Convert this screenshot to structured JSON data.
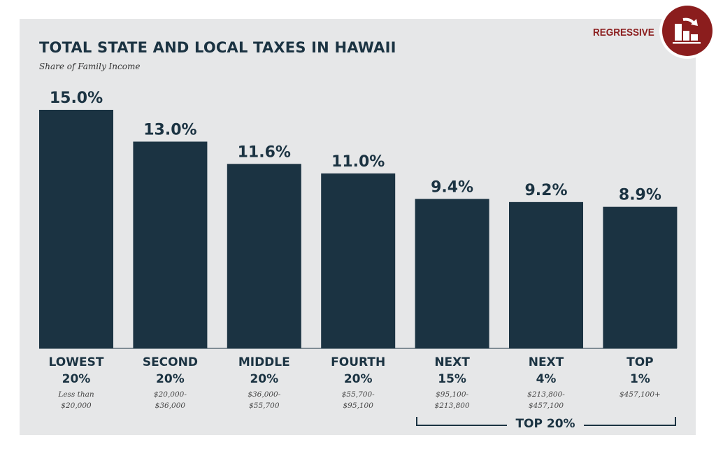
{
  "badge": {
    "label": "REGRESSIVE",
    "icon": "regressive-bar-chart-icon",
    "color": "#8b1d1d"
  },
  "chart_data": {
    "type": "bar",
    "title": "TOTAL STATE AND LOCAL TAXES IN HAWAII",
    "subtitle": "Share of Family Income",
    "categories": [
      {
        "name": "LOWEST",
        "pct": "20%",
        "range1": "Less than",
        "range2": "$20,000"
      },
      {
        "name": "SECOND",
        "pct": "20%",
        "range1": "$20,000-",
        "range2": "$36,000"
      },
      {
        "name": "MIDDLE",
        "pct": "20%",
        "range1": "$36,000-",
        "range2": "$55,700"
      },
      {
        "name": "FOURTH",
        "pct": "20%",
        "range1": "$55,700-",
        "range2": "$95,100"
      },
      {
        "name": "NEXT",
        "pct": "15%",
        "range1": "$95,100-",
        "range2": "$213,800"
      },
      {
        "name": "NEXT",
        "pct": "4%",
        "range1": "$213,800-",
        "range2": "$457,100"
      },
      {
        "name": "TOP",
        "pct": "1%",
        "range1": "$457,100+",
        "range2": ""
      }
    ],
    "values": [
      15.0,
      13.0,
      11.6,
      11.0,
      9.4,
      9.2,
      8.9
    ],
    "data_labels": [
      "15.0%",
      "13.0%",
      "11.6%",
      "11.0%",
      "9.4%",
      "9.2%",
      "8.9%"
    ],
    "group_label": "TOP 20%",
    "bar_color": "#1b3342",
    "ylim": [
      0,
      15
    ],
    "grid": false
  }
}
